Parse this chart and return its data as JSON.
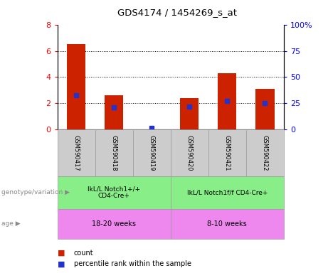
{
  "title": "GDS4174 / 1454269_s_at",
  "samples": [
    "GSM590417",
    "GSM590418",
    "GSM590419",
    "GSM590420",
    "GSM590421",
    "GSM590422"
  ],
  "counts": [
    6.5,
    2.6,
    0.0,
    2.4,
    4.3,
    3.1
  ],
  "percentile_ranks": [
    33.0,
    21.0,
    1.5,
    22.0,
    27.0,
    25.0
  ],
  "ylim_left": [
    0,
    8
  ],
  "ylim_right": [
    0,
    100
  ],
  "yticks_left": [
    0,
    2,
    4,
    6,
    8
  ],
  "yticks_right": [
    0,
    25,
    50,
    75,
    100
  ],
  "ytick_labels_right": [
    "0",
    "25",
    "50",
    "75",
    "100%"
  ],
  "bar_color": "#cc2200",
  "percentile_color": "#2233cc",
  "group1_label": "IkL/L Notch1+/+\nCD4-Cre+",
  "group2_label": "IkL/L Notch1f/f CD4-Cre+",
  "age1_label": "18-20 weeks",
  "age2_label": "8-10 weeks",
  "genotype_label": "genotype/variation",
  "age_label": "age",
  "group_color": "#88ee88",
  "age_color": "#ee88ee",
  "sample_bg_color": "#cccccc",
  "legend_count_label": "count",
  "legend_percentile_label": "percentile rank within the sample",
  "bar_width": 0.5
}
